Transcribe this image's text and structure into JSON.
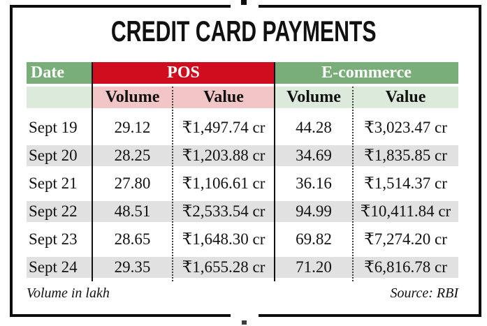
{
  "title": "CREDIT CARD PAYMENTS",
  "table": {
    "groups": {
      "date": "Date",
      "pos": "POS",
      "ecommerce": "E-commerce"
    },
    "subheaders": {
      "pos_volume": "Volume",
      "pos_value": "Value",
      "ecom_volume": "Volume",
      "ecom_value": "Value"
    },
    "rows": [
      {
        "cells": [
          "Sept 19",
          "29.12",
          "₹1,497.74 cr",
          "44.28",
          "₹3,023.47 cr"
        ]
      },
      {
        "cells": [
          "Sept 20",
          "28.25",
          "₹1,203.88 cr",
          "34.69",
          "₹1,835.85 cr"
        ]
      },
      {
        "cells": [
          "Sept 21",
          "27.80",
          "₹1,106.61 cr",
          "36.16",
          "₹1,514.37 cr"
        ]
      },
      {
        "cells": [
          "Sept 22",
          "48.51",
          "₹2,533.54 cr",
          "94.99",
          "₹10,411.84 cr"
        ]
      },
      {
        "cells": [
          "Sept 23",
          "28.65",
          "₹1,648.30 cr",
          "69.82",
          "₹7,274.20 cr"
        ]
      },
      {
        "cells": [
          "Sept 24",
          "29.35",
          "₹1,655.28 cr",
          "71.20",
          "₹6,816.78 cr"
        ]
      }
    ]
  },
  "footnotes": {
    "left": "Volume in lakh",
    "right": "Source: RBI"
  },
  "colors": {
    "header_green": "#79ae79",
    "header_red": "#d00d1e",
    "subheader_pink": "#f2c6c6",
    "subheader_light_green": "#dceadc",
    "row_alt_gray": "#e1e1e1",
    "border_black": "#0d0d0d",
    "header_text": "#ffffff",
    "body_text": "#111111"
  },
  "chart_data": {
    "type": "table",
    "title": "CREDIT CARD PAYMENTS",
    "columns": [
      "Date",
      "POS Volume (lakh)",
      "POS Value (₹ cr)",
      "E-commerce Volume (lakh)",
      "E-commerce Value (₹ cr)"
    ],
    "rows": [
      [
        "Sept 19",
        29.12,
        1497.74,
        44.28,
        3023.47
      ],
      [
        "Sept 20",
        28.25,
        1203.88,
        34.69,
        1835.85
      ],
      [
        "Sept 21",
        27.8,
        1106.61,
        36.16,
        1514.37
      ],
      [
        "Sept 22",
        48.51,
        2533.54,
        94.99,
        10411.84
      ],
      [
        "Sept 23",
        28.65,
        1648.3,
        69.82,
        7274.2
      ],
      [
        "Sept 24",
        29.35,
        1655.28,
        71.2,
        6816.78
      ]
    ],
    "notes": [
      "Volume in lakh",
      "Source: RBI"
    ]
  }
}
